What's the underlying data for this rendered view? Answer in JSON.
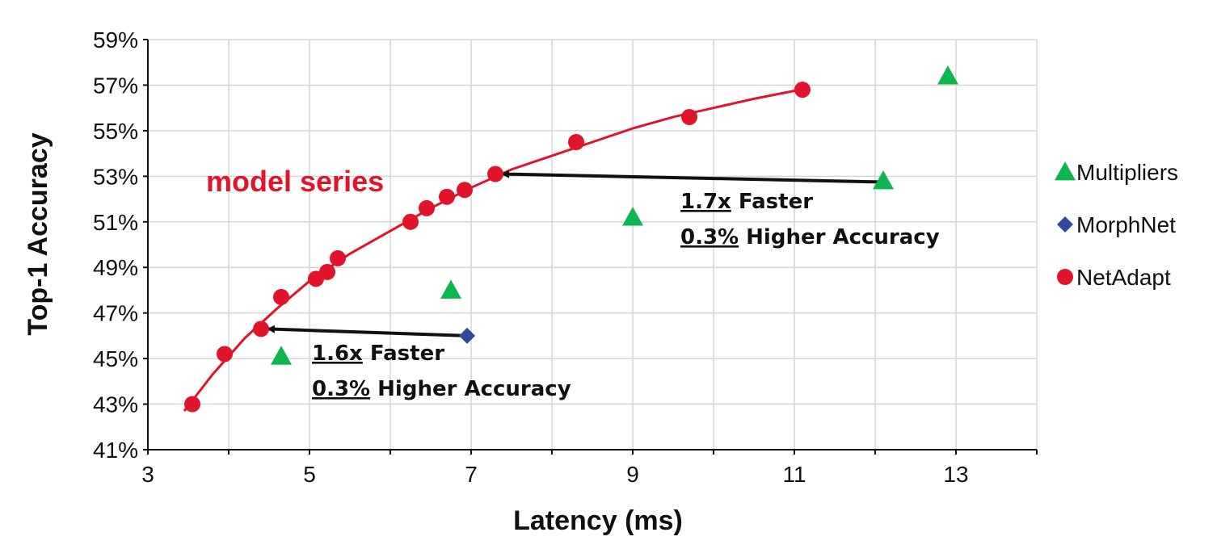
{
  "chart_data": {
    "type": "scatter",
    "title": "",
    "xlabel": "Latency (ms)",
    "ylabel": "Top-1 Accuracy",
    "xlim": [
      3,
      14
    ],
    "ylim": [
      41,
      59
    ],
    "x_ticks": [
      "3",
      "5",
      "7",
      "9",
      "11",
      "13"
    ],
    "y_ticks": [
      "41%",
      "43%",
      "45%",
      "47%",
      "49%",
      "51%",
      "53%",
      "55%",
      "57%",
      "59%"
    ],
    "grid": true,
    "legend_position": "right",
    "series": [
      {
        "name": "Multipliers",
        "marker": "triangle",
        "color": "#0fb54f",
        "x": [
          4.65,
          6.75,
          9.0,
          12.1,
          12.9
        ],
        "y": [
          45.1,
          48.0,
          51.2,
          52.8,
          57.4
        ]
      },
      {
        "name": "MorphNet",
        "marker": "diamond",
        "color": "#2b4aa0",
        "x": [
          6.95
        ],
        "y": [
          46.0
        ]
      },
      {
        "name": "NetAdapt",
        "marker": "circle",
        "color": "#e0142a",
        "x": [
          3.55,
          3.95,
          4.4,
          4.65,
          5.08,
          5.22,
          5.35,
          6.25,
          6.45,
          6.7,
          6.92,
          7.3,
          8.3,
          9.7,
          11.1
        ],
        "y": [
          43.0,
          45.2,
          46.3,
          47.7,
          48.5,
          48.8,
          49.4,
          51.0,
          51.6,
          52.1,
          52.4,
          53.1,
          54.5,
          55.6,
          56.8
        ]
      }
    ],
    "trend_line": {
      "x": [
        3.45,
        3.8,
        4.2,
        4.6,
        5.0,
        5.5,
        6.0,
        6.5,
        7.0,
        7.5,
        8.0,
        8.5,
        9.0,
        9.5,
        10.0,
        10.5,
        11.0,
        11.1
      ],
      "y": [
        42.7,
        44.3,
        45.9,
        47.2,
        48.4,
        49.6,
        50.6,
        51.6,
        52.5,
        53.3,
        53.9,
        54.5,
        55.1,
        55.6,
        56.0,
        56.4,
        56.75,
        56.8
      ]
    },
    "series_label": "model series",
    "annotations": [
      {
        "from": [
          12.05,
          52.75
        ],
        "to": [
          7.3,
          53.1
        ],
        "line1_emph": "1.7x",
        "line1_rest": " Faster",
        "line2_emph": "0.3%",
        "line2_rest": " Higher Accuracy"
      },
      {
        "from": [
          6.95,
          46.0
        ],
        "to": [
          4.4,
          46.3
        ],
        "line1_emph": "1.6x",
        "line1_rest": " Faster",
        "line2_emph": "0.3%",
        "line2_rest": " Higher Accuracy"
      }
    ]
  }
}
